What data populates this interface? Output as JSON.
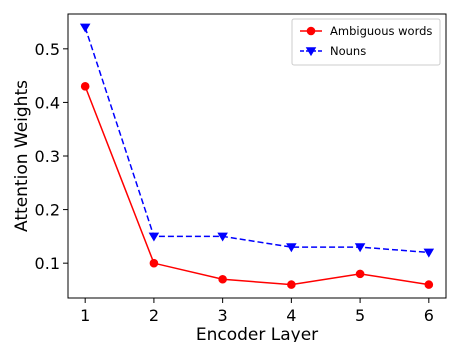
{
  "chart_data": {
    "type": "line",
    "title": "",
    "xlabel": "Encoder Layer",
    "ylabel": "Attention Weights",
    "x": [
      1,
      2,
      3,
      4,
      5,
      6
    ],
    "x_ticks": [
      "1",
      "2",
      "3",
      "4",
      "5",
      "6"
    ],
    "y_ticks": [
      "0.1",
      "0.2",
      "0.3",
      "0.4",
      "0.5"
    ],
    "xlim": [
      0.75,
      6.25
    ],
    "ylim": [
      0.035,
      0.565
    ],
    "grid": false,
    "legend_position": "top-right",
    "series": [
      {
        "name": "Ambiguous words",
        "values": [
          0.43,
          0.1,
          0.07,
          0.06,
          0.08,
          0.06
        ],
        "color": "#ff0000",
        "line_style": "solid",
        "marker": "circle"
      },
      {
        "name": "Nouns",
        "values": [
          0.54,
          0.15,
          0.15,
          0.13,
          0.13,
          0.12
        ],
        "color": "#0000ff",
        "line_style": "dashed",
        "marker": "triangle-down"
      }
    ]
  }
}
